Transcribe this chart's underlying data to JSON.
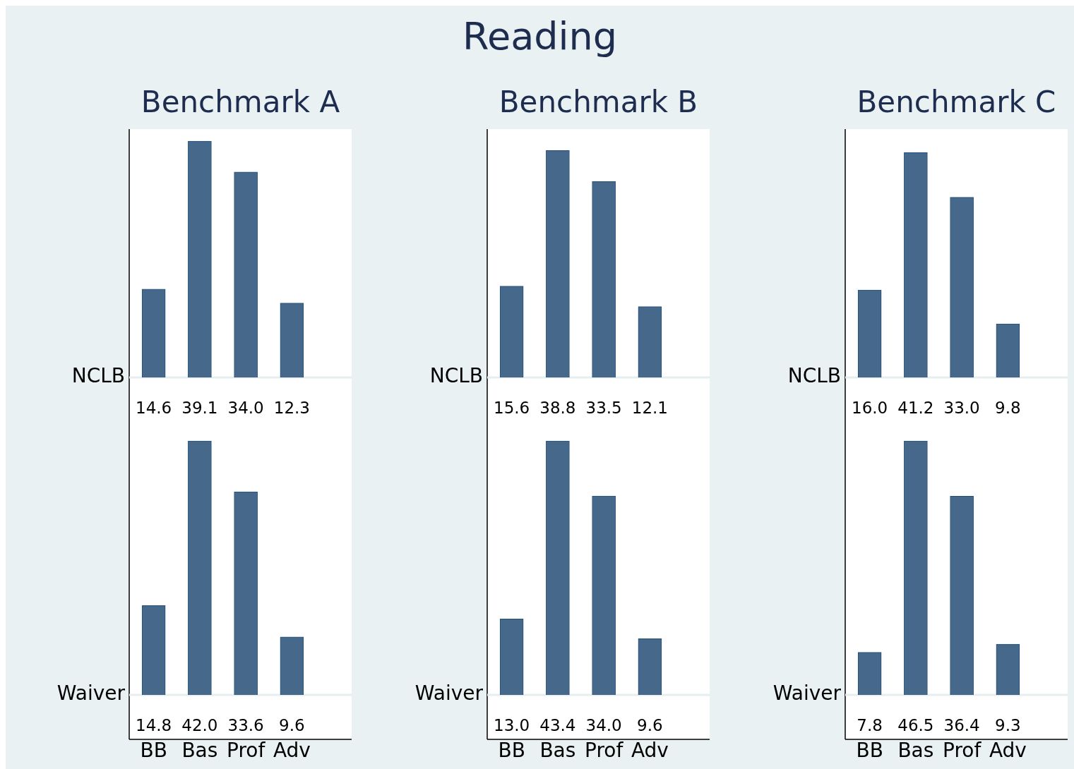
{
  "chart_data": [
    {
      "type": "bar",
      "title": "Benchmark A",
      "annotations": [
        "Reading"
      ],
      "ylabel": "NCLB",
      "categories": [
        null,
        null,
        null,
        null
      ],
      "color": "#46698b",
      "values": [
        14.6,
        39.1,
        34.0,
        12.3
      ],
      "value_labels": [
        "14.6",
        "39.1",
        "34.0",
        "12.3"
      ],
      "tick_labels": false
    },
    {
      "type": "bar",
      "title": "Benchmark B",
      "ylabel": "NCLB",
      "categories": [
        null,
        null,
        null,
        null
      ],
      "color": "#46698b",
      "values": [
        15.6,
        38.8,
        33.5,
        12.1
      ],
      "value_labels": [
        "15.6",
        "38.8",
        "33.5",
        "12.1"
      ],
      "tick_labels": false
    },
    {
      "type": "bar",
      "title": "Benchmark C",
      "ylabel": "NCLB",
      "categories": [
        null,
        null,
        null,
        null
      ],
      "color": "#46698b",
      "values": [
        16.0,
        41.2,
        33.0,
        9.8
      ],
      "value_labels": [
        "16.0",
        "41.2",
        "33.0",
        "9.8"
      ],
      "tick_labels": false
    },
    {
      "type": "bar",
      "ylabel": "Waiver",
      "categories": [
        "BB",
        "Bas",
        "Prof",
        "Adv"
      ],
      "color": "#46698b",
      "values": [
        14.8,
        42.0,
        33.6,
        9.6
      ],
      "value_labels": [
        "14.8",
        "42.0",
        "33.6",
        "9.6"
      ],
      "tick_labels": "x"
    },
    {
      "type": "bar",
      "ylabel": "Waiver",
      "categories": [
        "BB",
        "Bas",
        "Prof",
        "Adv"
      ],
      "color": "#46698b",
      "values": [
        13.0,
        43.4,
        34.0,
        9.6
      ],
      "value_labels": [
        "13.0",
        "43.4",
        "34.0",
        "9.6"
      ],
      "tick_labels": "x"
    },
    {
      "type": "bar",
      "ylabel": "Waiver",
      "categories": [
        "BB",
        "Bas",
        "Prof",
        "Adv"
      ],
      "color": "#46698b",
      "values": [
        7.8,
        46.5,
        36.4,
        9.3
      ],
      "value_labels": [
        "7.8",
        "46.5",
        "36.4",
        "9.3"
      ],
      "tick_labels": "x"
    }
  ]
}
